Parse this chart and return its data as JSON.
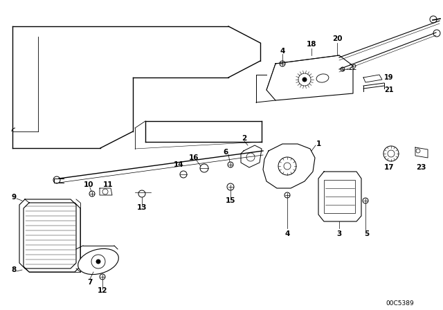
{
  "background_color": "#ffffff",
  "part_number": "00C5389",
  "fig_width": 6.4,
  "fig_height": 4.48,
  "dpi": 100
}
